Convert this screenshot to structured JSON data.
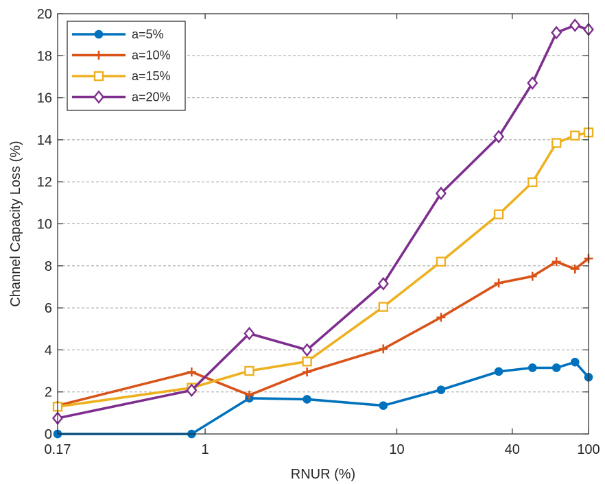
{
  "chart_data": {
    "type": "line",
    "title": "",
    "xlabel": "RNUR (%)",
    "ylabel": "Channel Capacity Loss (%)",
    "x_scale": "log",
    "xlim": [
      0.17,
      100
    ],
    "ylim": [
      0,
      20
    ],
    "x_ticks": [
      0.17,
      1,
      10,
      40,
      100
    ],
    "x_tick_labels": [
      "0.17",
      "1",
      "10",
      "40",
      "100"
    ],
    "y_ticks": [
      0,
      2,
      4,
      6,
      8,
      10,
      12,
      14,
      16,
      18,
      20
    ],
    "y_tick_labels": [
      "0",
      "2",
      "4",
      "6",
      "8",
      "10",
      "12",
      "14",
      "16",
      "18",
      "20"
    ],
    "grid": "horizontal dashed",
    "legend_position": "top-left",
    "series": [
      {
        "name": "a=5%",
        "color": "#0072BD",
        "marker": "circle",
        "x": [
          0.17,
          0.85,
          1.7,
          3.4,
          8.5,
          17,
          34,
          51,
          68,
          85,
          100
        ],
        "y": [
          0,
          0,
          1.7,
          1.65,
          1.35,
          2.1,
          2.97,
          3.15,
          3.15,
          3.42,
          2.7
        ]
      },
      {
        "name": "a=10%",
        "color": "#D95319",
        "marker": "plus",
        "x": [
          0.17,
          0.85,
          1.7,
          3.4,
          8.5,
          17,
          34,
          51,
          68,
          85,
          100
        ],
        "y": [
          1.35,
          2.95,
          1.85,
          2.95,
          4.05,
          5.55,
          7.18,
          7.5,
          8.2,
          7.85,
          8.35
        ]
      },
      {
        "name": "a=15%",
        "color": "#EDB120",
        "marker": "square",
        "x": [
          0.17,
          0.85,
          1.7,
          3.4,
          8.5,
          17,
          34,
          51,
          68,
          85,
          100
        ],
        "y": [
          1.3,
          2.2,
          3.0,
          3.45,
          6.05,
          8.2,
          10.45,
          11.98,
          13.85,
          14.2,
          14.35
        ]
      },
      {
        "name": "a=20%",
        "color": "#7E2F8E",
        "marker": "diamond",
        "x": [
          0.17,
          0.85,
          1.7,
          3.4,
          8.5,
          17,
          34,
          51,
          68,
          85,
          100
        ],
        "y": [
          0.75,
          2.08,
          4.78,
          4.0,
          7.15,
          11.45,
          14.15,
          16.7,
          19.1,
          19.45,
          19.25
        ]
      }
    ]
  }
}
